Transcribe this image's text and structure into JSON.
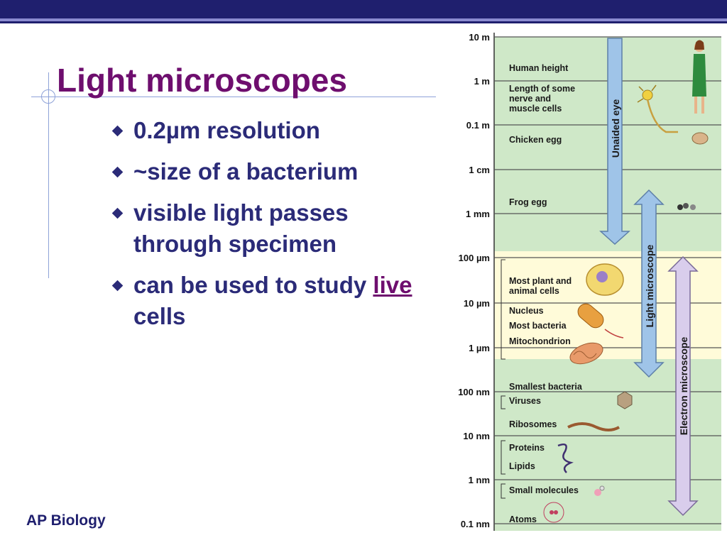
{
  "slide": {
    "title": "Light microscopes",
    "bullets": [
      "0.2µm resolution",
      "~size of a bacterium",
      "visible light passes through specimen",
      "can be used to study"
    ],
    "last_bullet_emphasis": "live",
    "last_bullet_tail": " cells",
    "footer": "AP Biology"
  },
  "colors": {
    "title": "#6e0e6e",
    "bullet_text": "#2b2b78",
    "header_bar": "#1f1f6e",
    "scale_green": "#cfe8c8",
    "scale_yellow": "#fffbd9",
    "arrow_eye": "#9fc4e8",
    "arrow_light": "#9fc4e8",
    "arrow_electron": "#d9cdec"
  },
  "scale": {
    "ticks": [
      "10 m",
      "1 m",
      "0.1 m",
      "1 cm",
      "1 mm",
      "100 µm",
      "10   µm",
      "1   µm",
      "100 nm",
      "10 nm",
      "1 nm",
      "0.1 nm"
    ],
    "items": [
      {
        "label": "Human height"
      },
      {
        "label": "Length of some"
      },
      {
        "label": "nerve and"
      },
      {
        "label": "muscle cells"
      },
      {
        "label": "Chicken egg"
      },
      {
        "label": "Frog egg"
      },
      {
        "label": "Most plant and"
      },
      {
        "label": "animal cells"
      },
      {
        "label": "Nucleus"
      },
      {
        "label": "Most bacteria"
      },
      {
        "label": "Mitochondrion"
      },
      {
        "label": "Smallest bacteria"
      },
      {
        "label": "Viruses"
      },
      {
        "label": "Ribosomes"
      },
      {
        "label": "Proteins"
      },
      {
        "label": "Lipids"
      },
      {
        "label": "Small molecules"
      },
      {
        "label": "Atoms"
      }
    ],
    "arrows": {
      "unaided_eye": "Unaided eye",
      "light_microscope": "Light microscope",
      "electron_microscope": "Electron microscope"
    }
  }
}
